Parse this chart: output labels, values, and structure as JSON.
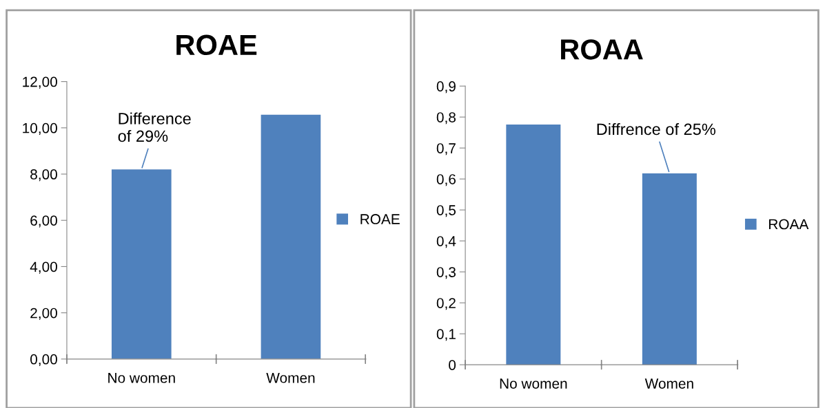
{
  "chart_data": [
    {
      "type": "bar",
      "title": "ROAE",
      "categories": [
        "No women",
        "Women"
      ],
      "series": [
        {
          "name": "ROAE",
          "color": "#4f81bd",
          "values": [
            8.2,
            10.57
          ]
        }
      ],
      "ylim": [
        0,
        12
      ],
      "yticks": [
        {
          "value": 0,
          "label": "0,00"
        },
        {
          "value": 2,
          "label": "2,00"
        },
        {
          "value": 4,
          "label": "4,00"
        },
        {
          "value": 6,
          "label": "6,00"
        },
        {
          "value": 8,
          "label": "8,00"
        },
        {
          "value": 10,
          "label": "10,00"
        },
        {
          "value": 12,
          "label": "12,00"
        }
      ],
      "annotations": [
        {
          "text": "Difference\nof 29%",
          "x": "No women",
          "y": 8.2
        }
      ],
      "grid": false,
      "legend": "right"
    },
    {
      "type": "bar",
      "title": "ROAA",
      "categories": [
        "No women",
        "Women"
      ],
      "series": [
        {
          "name": "ROAA",
          "color": "#4f81bd",
          "values": [
            0.776,
            0.618
          ]
        }
      ],
      "ylim": [
        0,
        0.9
      ],
      "yticks": [
        {
          "value": 0,
          "label": "0"
        },
        {
          "value": 0.1,
          "label": "0,1"
        },
        {
          "value": 0.2,
          "label": "0,2"
        },
        {
          "value": 0.3,
          "label": "0,3"
        },
        {
          "value": 0.4,
          "label": "0,4"
        },
        {
          "value": 0.5,
          "label": "0,5"
        },
        {
          "value": 0.6,
          "label": "0,6"
        },
        {
          "value": 0.7,
          "label": "0,7"
        },
        {
          "value": 0.8,
          "label": "0,8"
        },
        {
          "value": 0.9,
          "label": "0,9"
        }
      ],
      "annotations": [
        {
          "text": "Diffrence of 25%",
          "x": "Women",
          "y": 0.618
        }
      ],
      "grid": false,
      "legend": "right"
    }
  ]
}
